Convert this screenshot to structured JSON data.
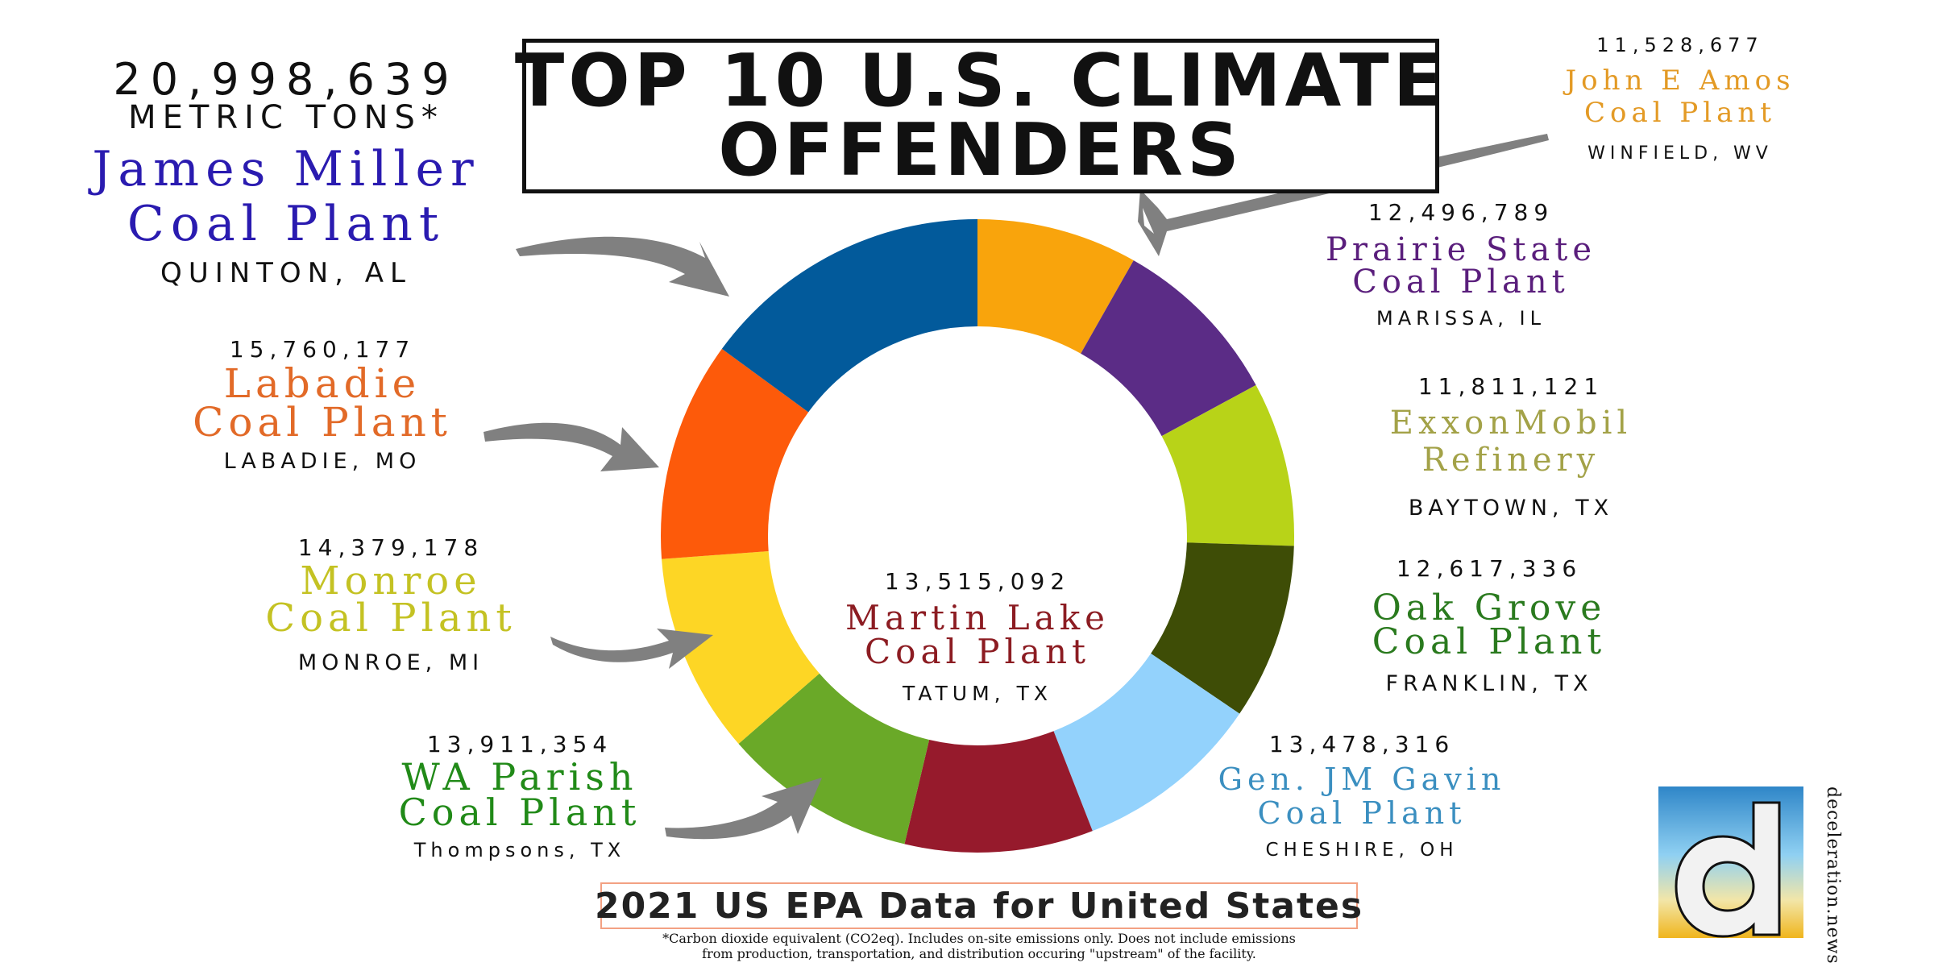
{
  "title": {
    "line1": "TOP 10 U.S. CLIMATE",
    "line2": "OFFENDERS"
  },
  "unit_label": "METRIC TONS*",
  "footer": {
    "title": "2021 US EPA Data for United States",
    "footnote_line1": "*Carbon dioxide equivalent (CO2eq). Includes on-site emissions only. Does not include emissions",
    "footnote_line2": "from production, transportation, and distribution occuring \"upstream\" of the facility."
  },
  "brand": {
    "text": "deceleration.news",
    "letter": "d"
  },
  "chart_data": {
    "type": "pie",
    "title": "TOP 10 U.S. CLIMATE OFFENDERS",
    "unit": "METRIC TONS*",
    "donut": true,
    "categories": [
      "James Miller Coal Plant",
      "John E Amos Coal Plant",
      "Prairie State Coal Plant",
      "ExxonMobil Refinery",
      "Oak Grove Coal Plant",
      "Gen. JM Gavin Coal Plant",
      "Martin Lake Coal Plant",
      "WA Parish Coal Plant",
      "Monroe Coal Plant",
      "Labadie Coal Plant"
    ],
    "values": [
      20998639,
      11528677,
      12496789,
      11811121,
      12617336,
      13478316,
      13515092,
      13911354,
      14379178,
      15760177
    ],
    "slice_order_clockwise_from_top": [
      "John E Amos Coal Plant",
      "Prairie State Coal Plant",
      "ExxonMobil Refinery",
      "Oak Grove Coal Plant",
      "Gen. JM Gavin Coal Plant",
      "Martin Lake Coal Plant",
      "WA Parish Coal Plant",
      "Monroe Coal Plant",
      "Labadie Coal Plant",
      "James Miller Coal Plant"
    ],
    "slice_colors": {
      "John E Amos Coal Plant": "#f9a40c",
      "Prairie State Coal Plant": "#5b2c86",
      "ExxonMobil Refinery": "#b8d318",
      "Oak Grove Coal Plant": "#3e4d06",
      "Gen. JM Gavin Coal Plant": "#93d2fc",
      "Martin Lake Coal Plant": "#961a2c",
      "WA Parish Coal Plant": "#6aa928",
      "Monroe Coal Plant": "#fdd625",
      "Labadie Coal Plant": "#fd5a0a",
      "James Miller Coal Plant": "#025a9b"
    },
    "plants": [
      {
        "name_line1": "James Miller",
        "name_line2": "Coal Plant",
        "value": "20,998,639",
        "location": "QUINTON, AL",
        "color": "#2a1bb0"
      },
      {
        "name_line1": "John E Amos",
        "name_line2": "Coal Plant",
        "value": "11,528,677",
        "location": "WINFIELD, WV",
        "color": "#e39a25"
      },
      {
        "name_line1": "Prairie State",
        "name_line2": "Coal Plant",
        "value": "12,496,789",
        "location": "MARISSA, IL",
        "color": "#5a1e7c"
      },
      {
        "name_line1": "ExxonMobil",
        "name_line2": "Refinery",
        "value": "11,811,121",
        "location": "BAYTOWN, TX",
        "color": "#a3a248"
      },
      {
        "name_line1": "Oak Grove",
        "name_line2": "Coal Plant",
        "value": "12,617,336",
        "location": "FRANKLIN, TX",
        "color": "#2a7a1e"
      },
      {
        "name_line1": "Gen. JM Gavin",
        "name_line2": "Coal Plant",
        "value": "13,478,316",
        "location": "CHESHIRE, OH",
        "color": "#3b8fc0"
      },
      {
        "name_line1": "Martin Lake",
        "name_line2": "Coal Plant",
        "value": "13,515,092",
        "location": "TATUM, TX",
        "color": "#8c1c22"
      },
      {
        "name_line1": "WA Parish",
        "name_line2": "Coal Plant",
        "value": "13,911,354",
        "location": "Thompsons, TX",
        "color": "#218a18"
      },
      {
        "name_line1": "Monroe",
        "name_line2": "Coal Plant",
        "value": "14,379,178",
        "location": "MONROE, MI",
        "color": "#c4c223"
      },
      {
        "name_line1": "Labadie",
        "name_line2": "Coal Plant",
        "value": "15,760,177",
        "location": "LABADIE, MO",
        "color": "#e26a28"
      }
    ]
  }
}
